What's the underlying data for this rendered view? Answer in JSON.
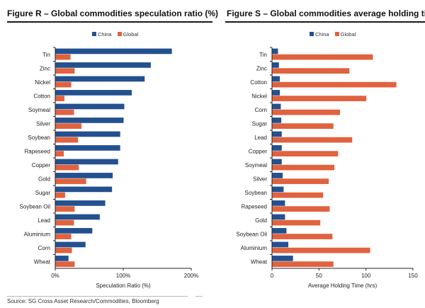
{
  "colors": {
    "china": "#23508f",
    "global": "#e0623f",
    "axis": "#222222"
  },
  "footer": {
    "source": "Source: SG Cross Asset Research/Commodities, Bloomberg"
  },
  "chart_data": [
    {
      "type": "bar",
      "orientation": "horizontal",
      "title": "Figure R – Global commodities speculation ratio (%)",
      "xlabel": "Speculation Ratio (%)",
      "ylabel": "",
      "xlim": [
        0,
        200
      ],
      "xticks": [
        0,
        100,
        200
      ],
      "xtick_labels": [
        "0%",
        "100%",
        "200%"
      ],
      "grid": false,
      "legend": {
        "position": "top-center",
        "entries": [
          "China",
          "Global"
        ]
      },
      "categories": [
        "Tin",
        "Zinc",
        "Nickel",
        "Cotton",
        "Soymeal",
        "Silver",
        "Soybean",
        "Rapeseed",
        "Copper",
        "Gold",
        "Sugar",
        "Soybean Oil",
        "Lead",
        "Aluminium",
        "Corn",
        "Wheat"
      ],
      "series": [
        {
          "name": "China",
          "values": [
            171,
            140,
            131,
            112,
            101,
            100,
            95,
            95,
            92,
            84,
            83,
            73,
            65,
            54,
            44,
            19
          ]
        },
        {
          "name": "Global",
          "values": [
            22,
            28,
            23,
            13,
            27,
            38,
            33,
            12,
            34,
            45,
            14,
            28,
            27,
            23,
            24,
            28
          ]
        }
      ]
    },
    {
      "type": "bar",
      "orientation": "horizontal",
      "title": "Figure S – Global commodities average holding time (hrs)",
      "xlabel": "Average Holding Time (hrs)",
      "ylabel": "",
      "xlim": [
        0,
        150
      ],
      "xticks": [
        0,
        50,
        100,
        150
      ],
      "xtick_labels": [
        "0",
        "50",
        "100",
        "150"
      ],
      "grid": false,
      "legend": {
        "position": "top-center",
        "entries": [
          "China",
          "Global"
        ]
      },
      "categories": [
        "Tin",
        "Zinc",
        "Cotton",
        "Nickel",
        "Corn",
        "Sugar",
        "Lead",
        "Copper",
        "Soymeal",
        "Silver",
        "Soybean",
        "Rapeseed",
        "Gold",
        "Soybean Oil",
        "Aluminium",
        "Wheat"
      ],
      "series": [
        {
          "name": "China",
          "values": [
            6,
            7,
            8,
            8,
            9,
            9.5,
            10,
            10,
            10,
            11,
            12,
            13.5,
            13.5,
            15,
            17,
            22
          ]
        },
        {
          "name": "Global",
          "values": [
            107,
            82,
            132,
            100,
            72,
            65,
            85,
            70,
            66,
            60,
            54,
            61,
            51,
            64,
            104,
            65
          ]
        }
      ]
    }
  ]
}
